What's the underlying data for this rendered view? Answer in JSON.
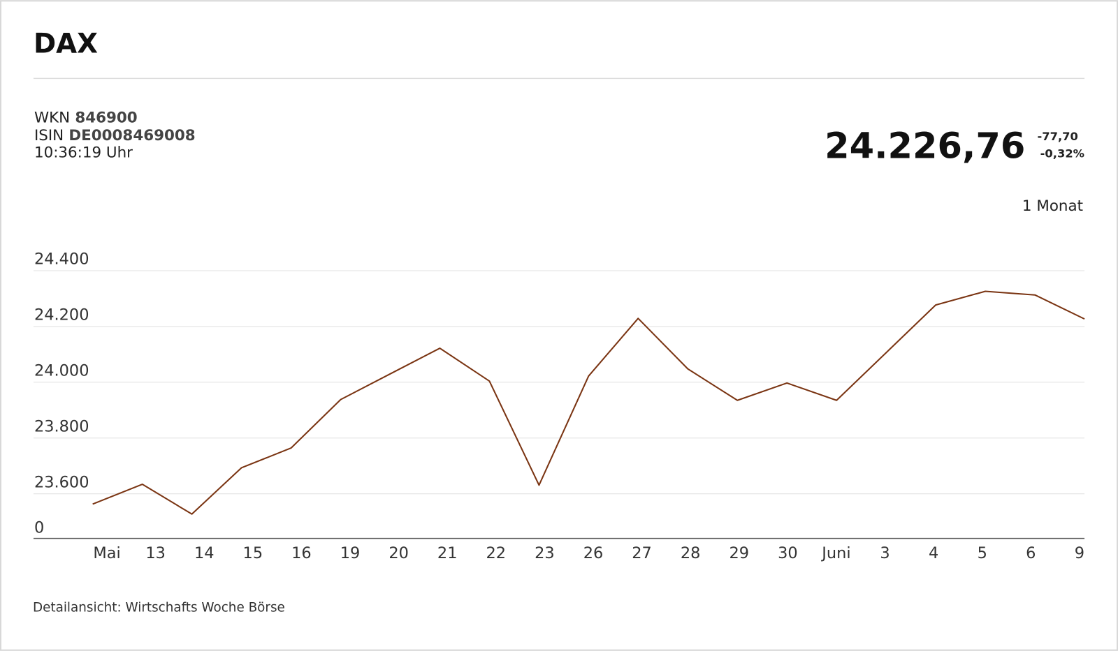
{
  "header": {
    "title": "DAX",
    "wkn_label": "WKN",
    "wkn": "846900",
    "isin_label": "ISIN",
    "isin": "DE0008469008",
    "time": "10:36:19 Uhr",
    "price": "24.226,76",
    "change": "-77,70",
    "change_pct": "-0,32%",
    "period": "1 Monat"
  },
  "chart_data": {
    "type": "line",
    "categories": [
      "Mai",
      "13",
      "14",
      "15",
      "16",
      "19",
      "20",
      "21",
      "22",
      "23",
      "26",
      "27",
      "28",
      "29",
      "30",
      "Juni",
      "3",
      "4",
      "5",
      "6",
      "9"
    ],
    "values": [
      23563,
      23634,
      23527,
      23693,
      23764,
      23938,
      24030,
      24122,
      24004,
      23631,
      24022,
      24229,
      24048,
      23935,
      23997,
      23935,
      24106,
      24277,
      24326,
      24313,
      24227
    ],
    "color": "#7a3412",
    "ylim": [
      23440,
      24400
    ],
    "yticks": [
      {
        "value": 23600,
        "label": "23.600"
      },
      {
        "value": 23800,
        "label": "23.800"
      },
      {
        "value": 24000,
        "label": "24.000"
      },
      {
        "value": 24200,
        "label": "24.200"
      },
      {
        "value": 24400,
        "label": "24.400"
      }
    ],
    "baseline_label": "0",
    "grid": true
  },
  "footer": {
    "source": "Detailansicht: Wirtschafts Woche Börse"
  }
}
